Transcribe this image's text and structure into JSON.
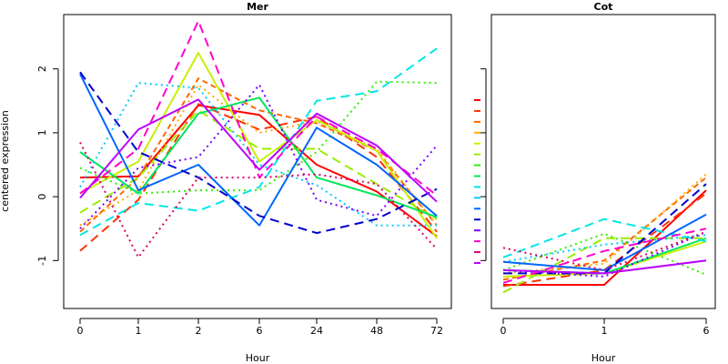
{
  "chart_data": [
    {
      "type": "line",
      "title": "Mer",
      "xlabel": "Hour",
      "ylabel": "centered expression",
      "categories": [
        "0",
        "1",
        "2",
        "6",
        "24",
        "48",
        "72"
      ],
      "yticks": [
        -1,
        0,
        1,
        2
      ],
      "ylim": [
        -1.75,
        2.85
      ],
      "grid": false,
      "series": [
        {
          "color": "#FF0000",
          "dash": "solid",
          "values": [
            0.3,
            0.32,
            1.43,
            1.28,
            0.5,
            0.08,
            -0.62
          ]
        },
        {
          "color": "#FF3300",
          "dash": "long",
          "values": [
            -0.85,
            -0.05,
            1.45,
            1.05,
            1.25,
            0.62,
            -0.55
          ]
        },
        {
          "color": "#FF6600",
          "dash": "dash",
          "values": [
            -0.55,
            0.3,
            1.85,
            1.35,
            1.15,
            0.72,
            -0.45
          ]
        },
        {
          "color": "#FFAA00",
          "dash": "dot",
          "values": [
            -0.45,
            0.1,
            1.75,
            1.0,
            1.18,
            0.75,
            -0.45
          ]
        },
        {
          "color": "#C8F000",
          "dash": "solid",
          "values": [
            0.05,
            0.55,
            2.25,
            0.55,
            1.2,
            0.72,
            -0.65
          ]
        },
        {
          "color": "#99EE00",
          "dash": "long",
          "values": [
            -0.25,
            0.3,
            1.35,
            0.75,
            0.75,
            0.2,
            -0.35
          ]
        },
        {
          "color": "#33EE00",
          "dash": "dot",
          "values": [
            0.45,
            0.05,
            0.1,
            0.1,
            0.7,
            1.8,
            1.78
          ]
        },
        {
          "color": "#00E65C",
          "dash": "solid",
          "values": [
            0.7,
            0.05,
            1.3,
            1.55,
            0.3,
            0.02,
            -0.32
          ]
        },
        {
          "color": "#00E6E6",
          "dash": "long",
          "values": [
            -0.6,
            -0.1,
            -0.22,
            0.15,
            1.5,
            1.65,
            2.32
          ]
        },
        {
          "color": "#00CCFF",
          "dash": "dot",
          "values": [
            0.15,
            1.78,
            1.7,
            0.5,
            0.18,
            -0.45,
            -0.45
          ]
        },
        {
          "color": "#0066FF",
          "dash": "solid",
          "values": [
            1.92,
            0.1,
            0.5,
            -0.45,
            1.08,
            0.5,
            -0.3
          ]
        },
        {
          "color": "#0000CC",
          "dash": "long",
          "values": [
            1.95,
            0.7,
            0.3,
            -0.3,
            -0.57,
            -0.35,
            0.12
          ]
        },
        {
          "color": "#7700FF",
          "dash": "dot",
          "values": [
            -0.5,
            0.45,
            0.62,
            1.75,
            -0.05,
            -0.3,
            0.8
          ]
        },
        {
          "color": "#FF00CC",
          "dash": "long",
          "values": [
            0.05,
            0.75,
            2.75,
            0.3,
            1.25,
            0.75,
            0.02
          ]
        },
        {
          "color": "#DD0066",
          "dash": "dot",
          "values": [
            0.85,
            -0.95,
            0.3,
            0.3,
            0.35,
            0.2,
            -0.82
          ]
        },
        {
          "color": "#BB00FF",
          "dash": "solid",
          "values": [
            -0.02,
            1.05,
            1.52,
            0.42,
            1.3,
            0.8,
            -0.08
          ]
        }
      ]
    },
    {
      "type": "line",
      "title": "Cot",
      "xlabel": "Hour",
      "ylabel": "",
      "categories": [
        "0",
        "1",
        "6"
      ],
      "ylim": [
        -1.75,
        2.85
      ],
      "grid": false,
      "series": [
        {
          "color": "#FF0000",
          "dash": "solid",
          "values": [
            -1.38,
            -1.38,
            0.1
          ]
        },
        {
          "color": "#FF3300",
          "dash": "long",
          "values": [
            -1.4,
            -1.15,
            0.05
          ]
        },
        {
          "color": "#FF6600",
          "dash": "dash",
          "values": [
            -1.3,
            -1.0,
            0.3
          ]
        },
        {
          "color": "#FFAA00",
          "dash": "dot",
          "values": [
            -1.2,
            -1.05,
            0.35
          ]
        },
        {
          "color": "#C8F000",
          "dash": "solid",
          "values": [
            -1.25,
            -1.2,
            -0.7
          ]
        },
        {
          "color": "#99EE00",
          "dash": "long",
          "values": [
            -1.5,
            -0.65,
            -0.65
          ]
        },
        {
          "color": "#33EE00",
          "dash": "dot",
          "values": [
            -1.15,
            -0.58,
            -1.22
          ]
        },
        {
          "color": "#00E65C",
          "dash": "solid",
          "values": [
            -1.15,
            -1.2,
            -0.65
          ]
        },
        {
          "color": "#00E6E6",
          "dash": "long",
          "values": [
            -0.95,
            -0.35,
            -0.7
          ]
        },
        {
          "color": "#00CCFF",
          "dash": "dot",
          "values": [
            -1.02,
            -0.75,
            -0.6
          ]
        },
        {
          "color": "#0066FF",
          "dash": "solid",
          "values": [
            -1.02,
            -1.15,
            -0.28
          ]
        },
        {
          "color": "#0000CC",
          "dash": "long",
          "values": [
            -1.2,
            -1.2,
            0.2
          ]
        },
        {
          "color": "#7700FF",
          "dash": "dot",
          "values": [
            -1.15,
            -1.25,
            -0.55
          ]
        },
        {
          "color": "#FF00CC",
          "dash": "long",
          "values": [
            -1.35,
            -0.85,
            -0.5
          ]
        },
        {
          "color": "#DD0066",
          "dash": "dot",
          "values": [
            -0.8,
            -1.15,
            -0.55
          ]
        },
        {
          "color": "#BB00FF",
          "dash": "solid",
          "values": [
            -1.15,
            -1.2,
            -1.0
          ]
        }
      ]
    }
  ]
}
